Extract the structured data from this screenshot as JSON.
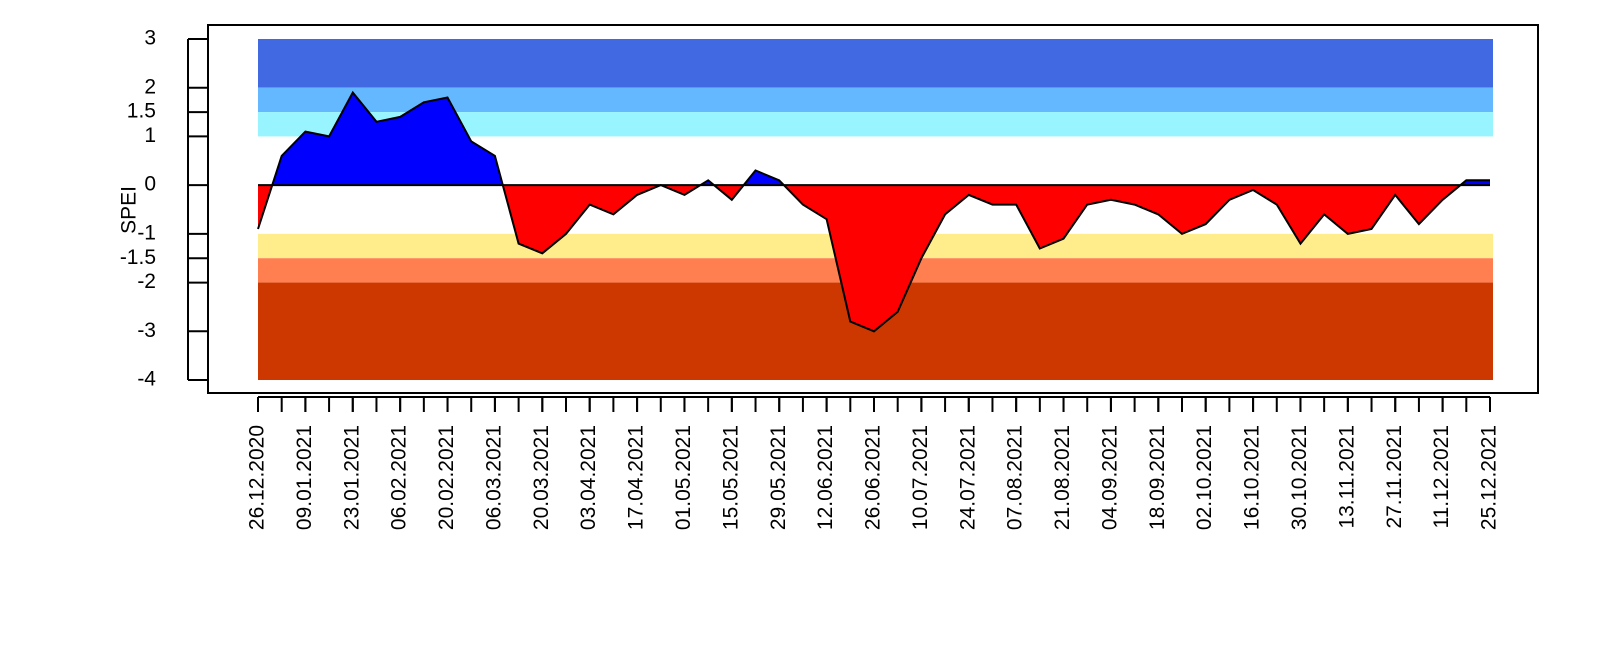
{
  "chart_data": {
    "type": "area",
    "y_label": "SPEI",
    "x": [
      "26.12.2020",
      "02.01.2021",
      "09.01.2021",
      "16.01.2021",
      "23.01.2021",
      "30.01.2021",
      "06.02.2021",
      "13.02.2021",
      "20.02.2021",
      "27.02.2021",
      "06.03.2021",
      "13.03.2021",
      "20.03.2021",
      "27.03.2021",
      "03.04.2021",
      "10.04.2021",
      "17.04.2021",
      "24.04.2021",
      "01.05.2021",
      "08.05.2021",
      "15.05.2021",
      "22.05.2021",
      "29.05.2021",
      "05.06.2021",
      "12.06.2021",
      "19.06.2021",
      "26.06.2021",
      "03.07.2021",
      "10.07.2021",
      "17.07.2021",
      "24.07.2021",
      "31.07.2021",
      "07.08.2021",
      "14.08.2021",
      "21.08.2021",
      "28.08.2021",
      "04.09.2021",
      "11.09.2021",
      "18.09.2021",
      "25.09.2021",
      "02.10.2021",
      "09.10.2021",
      "16.10.2021",
      "23.10.2021",
      "30.10.2021",
      "06.11.2021",
      "13.11.2021",
      "20.11.2021",
      "27.11.2021",
      "04.12.2021",
      "11.12.2021",
      "18.12.2021",
      "25.12.2021"
    ],
    "values": [
      -0.9,
      0.6,
      1.1,
      1.0,
      1.9,
      1.3,
      1.4,
      1.7,
      1.8,
      0.9,
      0.6,
      -1.2,
      -1.4,
      -1.0,
      -0.4,
      -0.6,
      -0.2,
      0.0,
      -0.2,
      0.1,
      -0.3,
      0.3,
      0.1,
      -0.4,
      -0.7,
      -2.8,
      -3.0,
      -2.6,
      -1.5,
      -0.6,
      -0.2,
      -0.4,
      -0.4,
      -1.3,
      -1.1,
      -0.4,
      -0.3,
      -0.4,
      -0.6,
      -1.0,
      -0.8,
      -0.3,
      -0.1,
      -0.4,
      -1.2,
      -0.6,
      -1.0,
      -0.9,
      -0.2,
      -0.8,
      -0.3,
      0.1,
      0.1
    ],
    "positive_color": "#0000ff",
    "negative_color": "#ff0000",
    "line_color": "#000000",
    "xlim": [
      "26.12.2020",
      "25.12.2021"
    ],
    "xticks": [
      "26.12.2020",
      "09.01.2021",
      "23.01.2021",
      "06.02.2021",
      "20.02.2021",
      "06.03.2021",
      "20.03.2021",
      "03.04.2021",
      "17.04.2021",
      "01.05.2021",
      "15.05.2021",
      "29.05.2021",
      "12.06.2021",
      "26.06.2021",
      "10.07.2021",
      "24.07.2021",
      "07.08.2021",
      "21.08.2021",
      "04.09.2021",
      "18.09.2021",
      "02.10.2021",
      "16.10.2021",
      "30.10.2021",
      "13.11.2021",
      "27.11.2021",
      "11.12.2021",
      "25.12.2021"
    ],
    "ylim": [
      -4,
      3
    ],
    "yticks": [
      3,
      2,
      1.5,
      1,
      0,
      -1,
      -1.5,
      -2,
      -3,
      -4
    ],
    "bands": [
      {
        "from": 2,
        "to": 3,
        "color": "#4169e1"
      },
      {
        "from": 1.5,
        "to": 2,
        "color": "#63b8ff"
      },
      {
        "from": 1,
        "to": 1.5,
        "color": "#98f5ff"
      },
      {
        "from": -1.5,
        "to": -1,
        "color": "#ffec8b"
      },
      {
        "from": -2,
        "to": -1.5,
        "color": "#ff7f50"
      },
      {
        "from": -4,
        "to": -2,
        "color": "#cd3700"
      }
    ]
  }
}
